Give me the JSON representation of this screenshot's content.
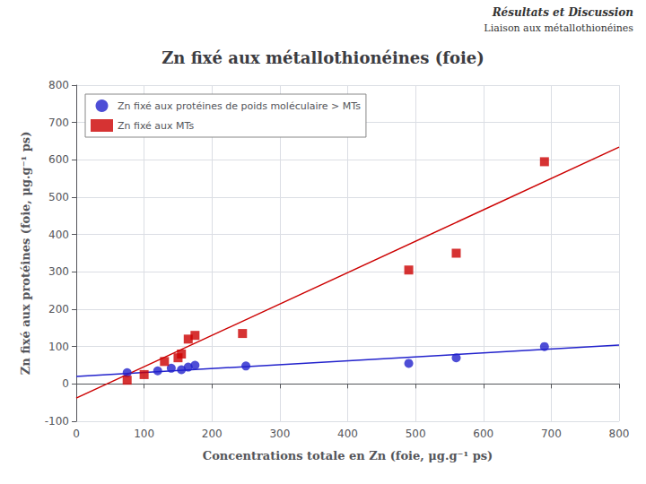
{
  "chart_data": {
    "type": "scatter",
    "title": "Zn fixé aux métallothionéines (foie)",
    "annotations": [
      "Résultats et Discussion",
      "Liaison aux métallothionéines"
    ],
    "x_label": "Concentrations totale en Zn (foie, μg.g⁻¹ ps)",
    "y_label": "Zn fixé aux protéines (foie, μg.g⁻¹ ps)",
    "series": [
      {
        "name": "Zn fixé aux protéines de poids moléculaire > MTs",
        "type": "scatter",
        "marker": "circle",
        "color": "#2222cc",
        "x": [
          75,
          120,
          140,
          155,
          165,
          175,
          250,
          490,
          560,
          690
        ],
        "values": [
          30,
          35,
          42,
          38,
          45,
          50,
          48,
          55,
          70,
          100
        ]
      },
      {
        "name": "Zn fixé aux MTs",
        "type": "scatter",
        "marker": "square",
        "color": "#cc0000",
        "x": [
          75,
          100,
          130,
          150,
          155,
          165,
          175,
          245,
          490,
          560,
          690
        ],
        "values": [
          10,
          25,
          60,
          70,
          80,
          120,
          130,
          135,
          305,
          350,
          595
        ]
      },
      {
        "type": "line",
        "color": "#2222cc",
        "x": [
          0,
          800
        ],
        "values": [
          20,
          104
        ]
      },
      {
        "type": "line",
        "color": "#cc0000",
        "x": [
          0,
          800
        ],
        "values": [
          -38,
          634
        ]
      }
    ],
    "xlim": [
      0,
      800
    ],
    "ylim": [
      -100,
      800
    ],
    "xticks": [
      0,
      100,
      200,
      300,
      400,
      500,
      600,
      700,
      800
    ],
    "yticks": [
      -100,
      0,
      100,
      200,
      300,
      400,
      500,
      600,
      700,
      800
    ],
    "grid": true,
    "legend": "upper left"
  }
}
